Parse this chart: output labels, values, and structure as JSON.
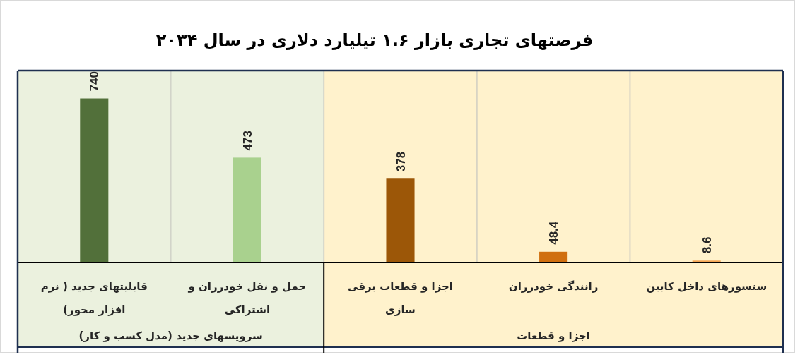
{
  "chart_data": {
    "type": "bar",
    "title": "فرصتهای تجاری بازار ۱.۶ تیلیارد دلاری در سال ۲۰۳۴",
    "categories": [
      "قابلیتهای جدید ( نرم افزار محور)",
      "حمل و نقل خودرران و اشتراکی",
      "اجزا و قطعات برقی سازی",
      "رانندگی خودرران",
      "سنسورهای داخل کابین"
    ],
    "values": [
      740,
      473,
      378,
      48.4,
      8.6
    ],
    "colors": [
      "#52703a",
      "#a9d18e",
      "#9c5708",
      "#d06f0f",
      "#f4a553"
    ],
    "data_labels": true,
    "grid": "x",
    "tick_labels": "x",
    "bands": [
      {
        "axis": "x",
        "from": "قابلیتهای جدید ( نرم افزار محور)",
        "to": "حمل و نقل خودرران و اشتراکی",
        "label": "سرویسهای جدید (مدل کسب و کار)",
        "color": "#ebf1de"
      },
      {
        "axis": "x",
        "from": "اجزا و قطعات برقی سازی",
        "to": "سنسورهای داخل کابین",
        "label": "اجزا و قطعات",
        "color": "#fff2cc"
      }
    ]
  }
}
